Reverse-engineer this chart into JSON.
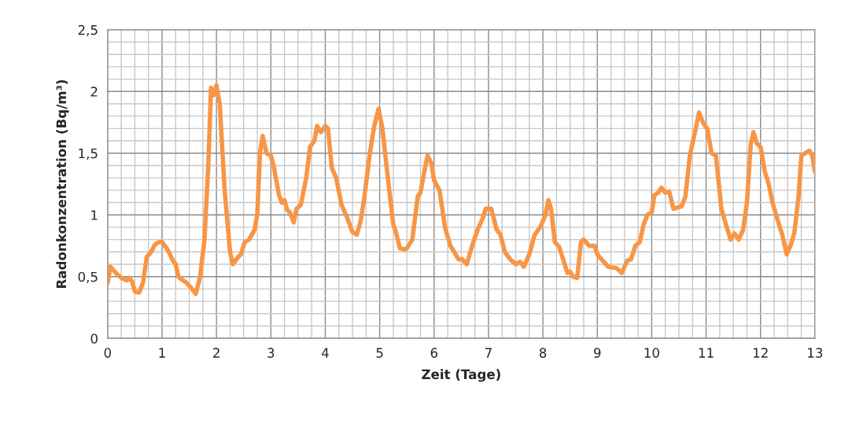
{
  "chart_data": {
    "type": "line",
    "xlabel": "Zeit (Tage)",
    "ylabel": "Radonkonzentration (Bq/m³)",
    "x": [
      0.0,
      0.05,
      0.15,
      0.25,
      0.35,
      0.4,
      0.45,
      0.5,
      0.58,
      0.65,
      0.72,
      0.8,
      0.87,
      0.95,
      1.0,
      1.1,
      1.2,
      1.25,
      1.3,
      1.35,
      1.45,
      1.55,
      1.62,
      1.7,
      1.78,
      1.85,
      1.9,
      1.95,
      2.0,
      2.06,
      2.15,
      2.25,
      2.3,
      2.4,
      2.45,
      2.52,
      2.6,
      2.7,
      2.75,
      2.8,
      2.85,
      2.92,
      3.0,
      3.05,
      3.15,
      3.2,
      3.25,
      3.3,
      3.35,
      3.42,
      3.47,
      3.55,
      3.65,
      3.72,
      3.8,
      3.85,
      3.92,
      4.0,
      4.05,
      4.12,
      4.2,
      4.3,
      4.4,
      4.5,
      4.58,
      4.65,
      4.72,
      4.82,
      4.9,
      4.98,
      5.05,
      5.15,
      5.25,
      5.3,
      5.37,
      5.45,
      5.5,
      5.6,
      5.7,
      5.75,
      5.82,
      5.88,
      5.95,
      6.0,
      6.1,
      6.2,
      6.3,
      6.37,
      6.45,
      6.52,
      6.6,
      6.7,
      6.8,
      6.9,
      6.95,
      7.05,
      7.15,
      7.22,
      7.3,
      7.4,
      7.5,
      7.58,
      7.65,
      7.75,
      7.85,
      7.95,
      8.05,
      8.1,
      8.15,
      8.22,
      8.3,
      8.4,
      8.45,
      8.5,
      8.55,
      8.63,
      8.7,
      8.75,
      8.85,
      8.95,
      9.0,
      9.1,
      9.2,
      9.35,
      9.45,
      9.55,
      9.62,
      9.7,
      9.78,
      9.85,
      9.92,
      10.0,
      10.05,
      10.12,
      10.18,
      10.25,
      10.32,
      10.4,
      10.47,
      10.55,
      10.62,
      10.7,
      10.8,
      10.87,
      10.95,
      11.02,
      11.1,
      11.18,
      11.28,
      11.38,
      11.45,
      11.52,
      11.6,
      11.68,
      11.75,
      11.82,
      11.87,
      11.93,
      12.0,
      12.08,
      12.15,
      12.22,
      12.32,
      12.4,
      12.48,
      12.55,
      12.62,
      12.7,
      12.75,
      12.82,
      12.9,
      12.95,
      13.0
    ],
    "series": [
      {
        "color": "#f79646",
        "values": [
          0.45,
          0.58,
          0.53,
          0.49,
          0.47,
          0.49,
          0.46,
          0.38,
          0.37,
          0.45,
          0.66,
          0.7,
          0.76,
          0.78,
          0.78,
          0.72,
          0.63,
          0.6,
          0.5,
          0.48,
          0.45,
          0.4,
          0.36,
          0.5,
          0.8,
          1.4,
          2.03,
          1.97,
          2.05,
          1.9,
          1.2,
          0.7,
          0.6,
          0.66,
          0.68,
          0.78,
          0.8,
          0.88,
          1.0,
          1.5,
          1.64,
          1.5,
          1.48,
          1.4,
          1.16,
          1.1,
          1.12,
          1.04,
          1.02,
          0.94,
          1.05,
          1.08,
          1.3,
          1.55,
          1.6,
          1.72,
          1.67,
          1.72,
          1.7,
          1.38,
          1.3,
          1.08,
          0.98,
          0.86,
          0.84,
          0.95,
          1.15,
          1.5,
          1.72,
          1.86,
          1.7,
          1.3,
          0.92,
          0.86,
          0.73,
          0.72,
          0.73,
          0.8,
          1.15,
          1.18,
          1.35,
          1.48,
          1.42,
          1.28,
          1.2,
          0.9,
          0.75,
          0.7,
          0.64,
          0.64,
          0.6,
          0.75,
          0.88,
          0.98,
          1.05,
          1.05,
          0.88,
          0.84,
          0.7,
          0.64,
          0.6,
          0.62,
          0.58,
          0.68,
          0.84,
          0.9,
          1.0,
          1.12,
          1.05,
          0.78,
          0.74,
          0.6,
          0.53,
          0.54,
          0.5,
          0.49,
          0.78,
          0.8,
          0.75,
          0.75,
          0.68,
          0.63,
          0.58,
          0.57,
          0.53,
          0.63,
          0.64,
          0.75,
          0.78,
          0.92,
          1.0,
          1.02,
          1.16,
          1.18,
          1.22,
          1.18,
          1.19,
          1.05,
          1.06,
          1.07,
          1.15,
          1.48,
          1.68,
          1.83,
          1.74,
          1.7,
          1.5,
          1.48,
          1.05,
          0.9,
          0.8,
          0.85,
          0.8,
          0.88,
          1.1,
          1.57,
          1.67,
          1.58,
          1.55,
          1.35,
          1.25,
          1.1,
          0.95,
          0.84,
          0.68,
          0.75,
          0.85,
          1.15,
          1.48,
          1.5,
          1.52,
          1.48,
          1.35
        ]
      }
    ],
    "xlim": [
      0,
      13
    ],
    "xticks": [
      0,
      1,
      2,
      3,
      4,
      5,
      6,
      7,
      8,
      9,
      10,
      11,
      12,
      13
    ],
    "ylim": [
      0,
      2.5
    ],
    "yticks": [
      0,
      {
        "value": 0.5,
        "label": "0,5"
      },
      1,
      {
        "value": 1.5,
        "label": "1,5"
      },
      2,
      {
        "value": 2.5,
        "label": "2,5"
      }
    ],
    "grid": true,
    "marker": "none",
    "line_style": "solid",
    "legend": false
  }
}
